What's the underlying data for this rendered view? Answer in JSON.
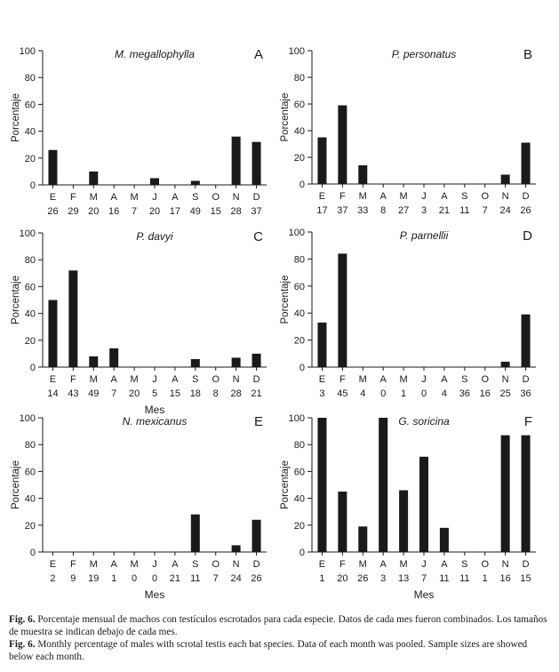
{
  "chart_data": [
    {
      "type": "bar",
      "panel_letter": "A",
      "species": "M. megallophylla",
      "ylabel": "Porcentaje",
      "xlabel": "",
      "ylim": [
        0,
        100
      ],
      "yticks": [
        0,
        20,
        40,
        60,
        80,
        100
      ],
      "categories": [
        "E",
        "F",
        "M",
        "A",
        "M",
        "J",
        "A",
        "S",
        "O",
        "N",
        "D"
      ],
      "sample_sizes": [
        "26",
        "29",
        "20",
        "16",
        "7",
        "20",
        "17",
        "49",
        "15",
        "28",
        "37"
      ],
      "values": [
        26,
        0,
        10,
        0,
        0,
        5,
        0,
        3,
        0,
        36,
        32
      ]
    },
    {
      "type": "bar",
      "panel_letter": "B",
      "species": "P. personatus",
      "ylabel": "Porcentaje",
      "xlabel": "",
      "ylim": [
        0,
        100
      ],
      "yticks": [
        0,
        20,
        40,
        60,
        80,
        100
      ],
      "categories": [
        "E",
        "F",
        "M",
        "A",
        "M",
        "J",
        "A",
        "S",
        "O",
        "N",
        "D"
      ],
      "sample_sizes": [
        "17",
        "37",
        "33",
        "8",
        "27",
        "3",
        "21",
        "11",
        "7",
        "24",
        "26"
      ],
      "values": [
        35,
        59,
        14,
        0,
        0,
        0,
        0,
        0,
        0,
        7,
        31
      ]
    },
    {
      "type": "bar",
      "panel_letter": "C",
      "species": "P. davyi",
      "ylabel": "Porcentaje",
      "xlabel": "Mes",
      "ylim": [
        0,
        100
      ],
      "yticks": [
        0,
        20,
        40,
        60,
        80,
        100
      ],
      "categories": [
        "E",
        "F",
        "M",
        "A",
        "M",
        "J",
        "A",
        "S",
        "O",
        "N",
        "D"
      ],
      "sample_sizes": [
        "14",
        "43",
        "49",
        "7",
        "20",
        "5",
        "15",
        "18",
        "8",
        "28",
        "21"
      ],
      "values": [
        50,
        72,
        8,
        14,
        0,
        0,
        0,
        6,
        0,
        7,
        10
      ]
    },
    {
      "type": "bar",
      "panel_letter": "D",
      "species": "P. parnellii",
      "ylabel": "Porcentaje",
      "xlabel": "",
      "ylim": [
        0,
        100
      ],
      "yticks": [
        0,
        20,
        40,
        60,
        80,
        100
      ],
      "categories": [
        "E",
        "F",
        "M",
        "A",
        "M",
        "J",
        "A",
        "S",
        "O",
        "N",
        "D"
      ],
      "sample_sizes": [
        "3",
        "45",
        "4",
        "0",
        "1",
        "0",
        "4",
        "36",
        "16",
        "25",
        "36"
      ],
      "values": [
        33,
        84,
        0,
        0,
        0,
        0,
        0,
        0,
        0,
        4,
        39
      ]
    },
    {
      "type": "bar",
      "panel_letter": "E",
      "species": "N. mexicanus",
      "ylabel": "Porcentaje",
      "xlabel": "Mes",
      "ylim": [
        0,
        100
      ],
      "yticks": [
        0,
        20,
        40,
        60,
        80,
        100
      ],
      "categories": [
        "E",
        "F",
        "M",
        "A",
        "M",
        "J",
        "A",
        "S",
        "O",
        "N",
        "D"
      ],
      "sample_sizes": [
        "2",
        "9",
        "19",
        "1",
        "0",
        "0",
        "21",
        "11",
        "7",
        "24",
        "26"
      ],
      "values": [
        0,
        0,
        0,
        0,
        0,
        0,
        0,
        28,
        0,
        5,
        24
      ]
    },
    {
      "type": "bar",
      "panel_letter": "F",
      "species": "G. soricina",
      "ylabel": "Porcentaje",
      "xlabel": "Mes",
      "ylim": [
        0,
        100
      ],
      "yticks": [
        0,
        20,
        40,
        60,
        80,
        100
      ],
      "categories": [
        "E",
        "F",
        "M",
        "A",
        "M",
        "J",
        "A",
        "S",
        "O",
        "N",
        "D"
      ],
      "sample_sizes": [
        "1",
        "20",
        "26",
        "3",
        "13",
        "7",
        "11",
        "11",
        "1",
        "16",
        "15"
      ],
      "values": [
        100,
        45,
        19,
        100,
        46,
        71,
        18,
        0,
        0,
        87,
        87
      ]
    }
  ],
  "caption": {
    "es_label": "Fig. 6.",
    "es_text": " Porcentaje mensual de machos con testículos escrotados para cada especie. Datos de cada mes fueron combinados. Los tamaños de muestra se indican debajo de cada mes.",
    "en_label": "Fig. 6.",
    "en_text": " Monthly percentage of males with scrotal testis each bat species. Data of each month was pooled. Sample sizes are showed below each month."
  },
  "colors": {
    "bar": "#1a1a1a",
    "axis": "#1a1a1a"
  }
}
